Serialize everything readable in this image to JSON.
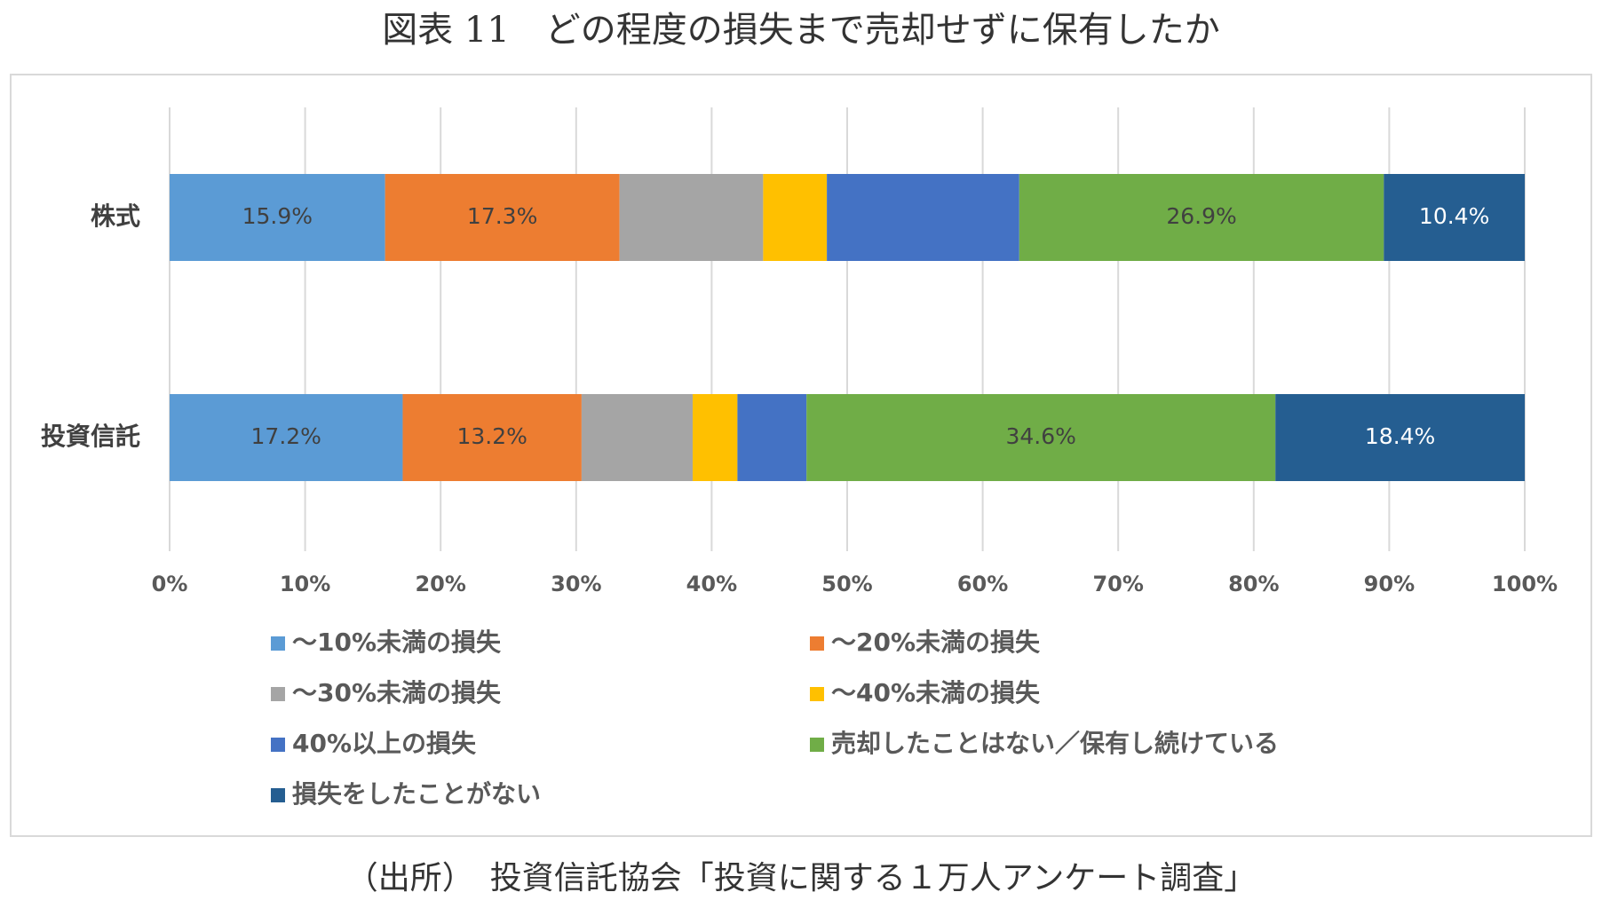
{
  "chart_data": {
    "type": "stacked_barh",
    "title": "図表 11　どの程度の損失まで売却せずに保有したか",
    "source": "（出所）　投資信託協会「投資に関する１万人アンケート調査」",
    "categories": [
      "株式",
      "投資信託"
    ],
    "series": [
      {
        "name": "～10%未満の損失",
        "color": "#5b9bd5",
        "values": [
          15.9,
          17.2
        ],
        "value_labels": [
          "15.9%",
          "17.2%"
        ]
      },
      {
        "name": "～20%未満の損失",
        "color": "#ed7d31",
        "values": [
          17.3,
          13.2
        ],
        "value_labels": [
          "17.3%",
          "13.2%"
        ]
      },
      {
        "name": "～30%未満の損失",
        "color": "#a5a5a5",
        "values": [
          10.6,
          8.2
        ],
        "value_labels": [
          null,
          null
        ]
      },
      {
        "name": "～40%未満の損失",
        "color": "#ffc000",
        "values": [
          4.7,
          3.3
        ],
        "value_labels": [
          null,
          null
        ]
      },
      {
        "name": "40%以上の損失",
        "color": "#4472c4",
        "values": [
          14.2,
          5.1
        ],
        "value_labels": [
          null,
          null
        ]
      },
      {
        "name": "売却したことはない／保有し続けている",
        "color": "#70ad47",
        "values": [
          26.9,
          34.6
        ],
        "value_labels": [
          "26.9%",
          "34.6%"
        ]
      },
      {
        "name": "損失をしたことがない",
        "color": "#255e91",
        "values": [
          10.4,
          18.4
        ],
        "value_labels": [
          "10.4%",
          "18.4%"
        ]
      }
    ],
    "xlim": [
      0,
      100
    ],
    "xticks": [
      {
        "value": 0,
        "label": "0%"
      },
      {
        "value": 10,
        "label": "10%"
      },
      {
        "value": 20,
        "label": "20%"
      },
      {
        "value": 30,
        "label": "30%"
      },
      {
        "value": 40,
        "label": "40%"
      },
      {
        "value": 50,
        "label": "50%"
      },
      {
        "value": 60,
        "label": "60%"
      },
      {
        "value": 70,
        "label": "70%"
      },
      {
        "value": 80,
        "label": "80%"
      },
      {
        "value": 90,
        "label": "90%"
      },
      {
        "value": 100,
        "label": "100%"
      }
    ],
    "grid": true
  }
}
